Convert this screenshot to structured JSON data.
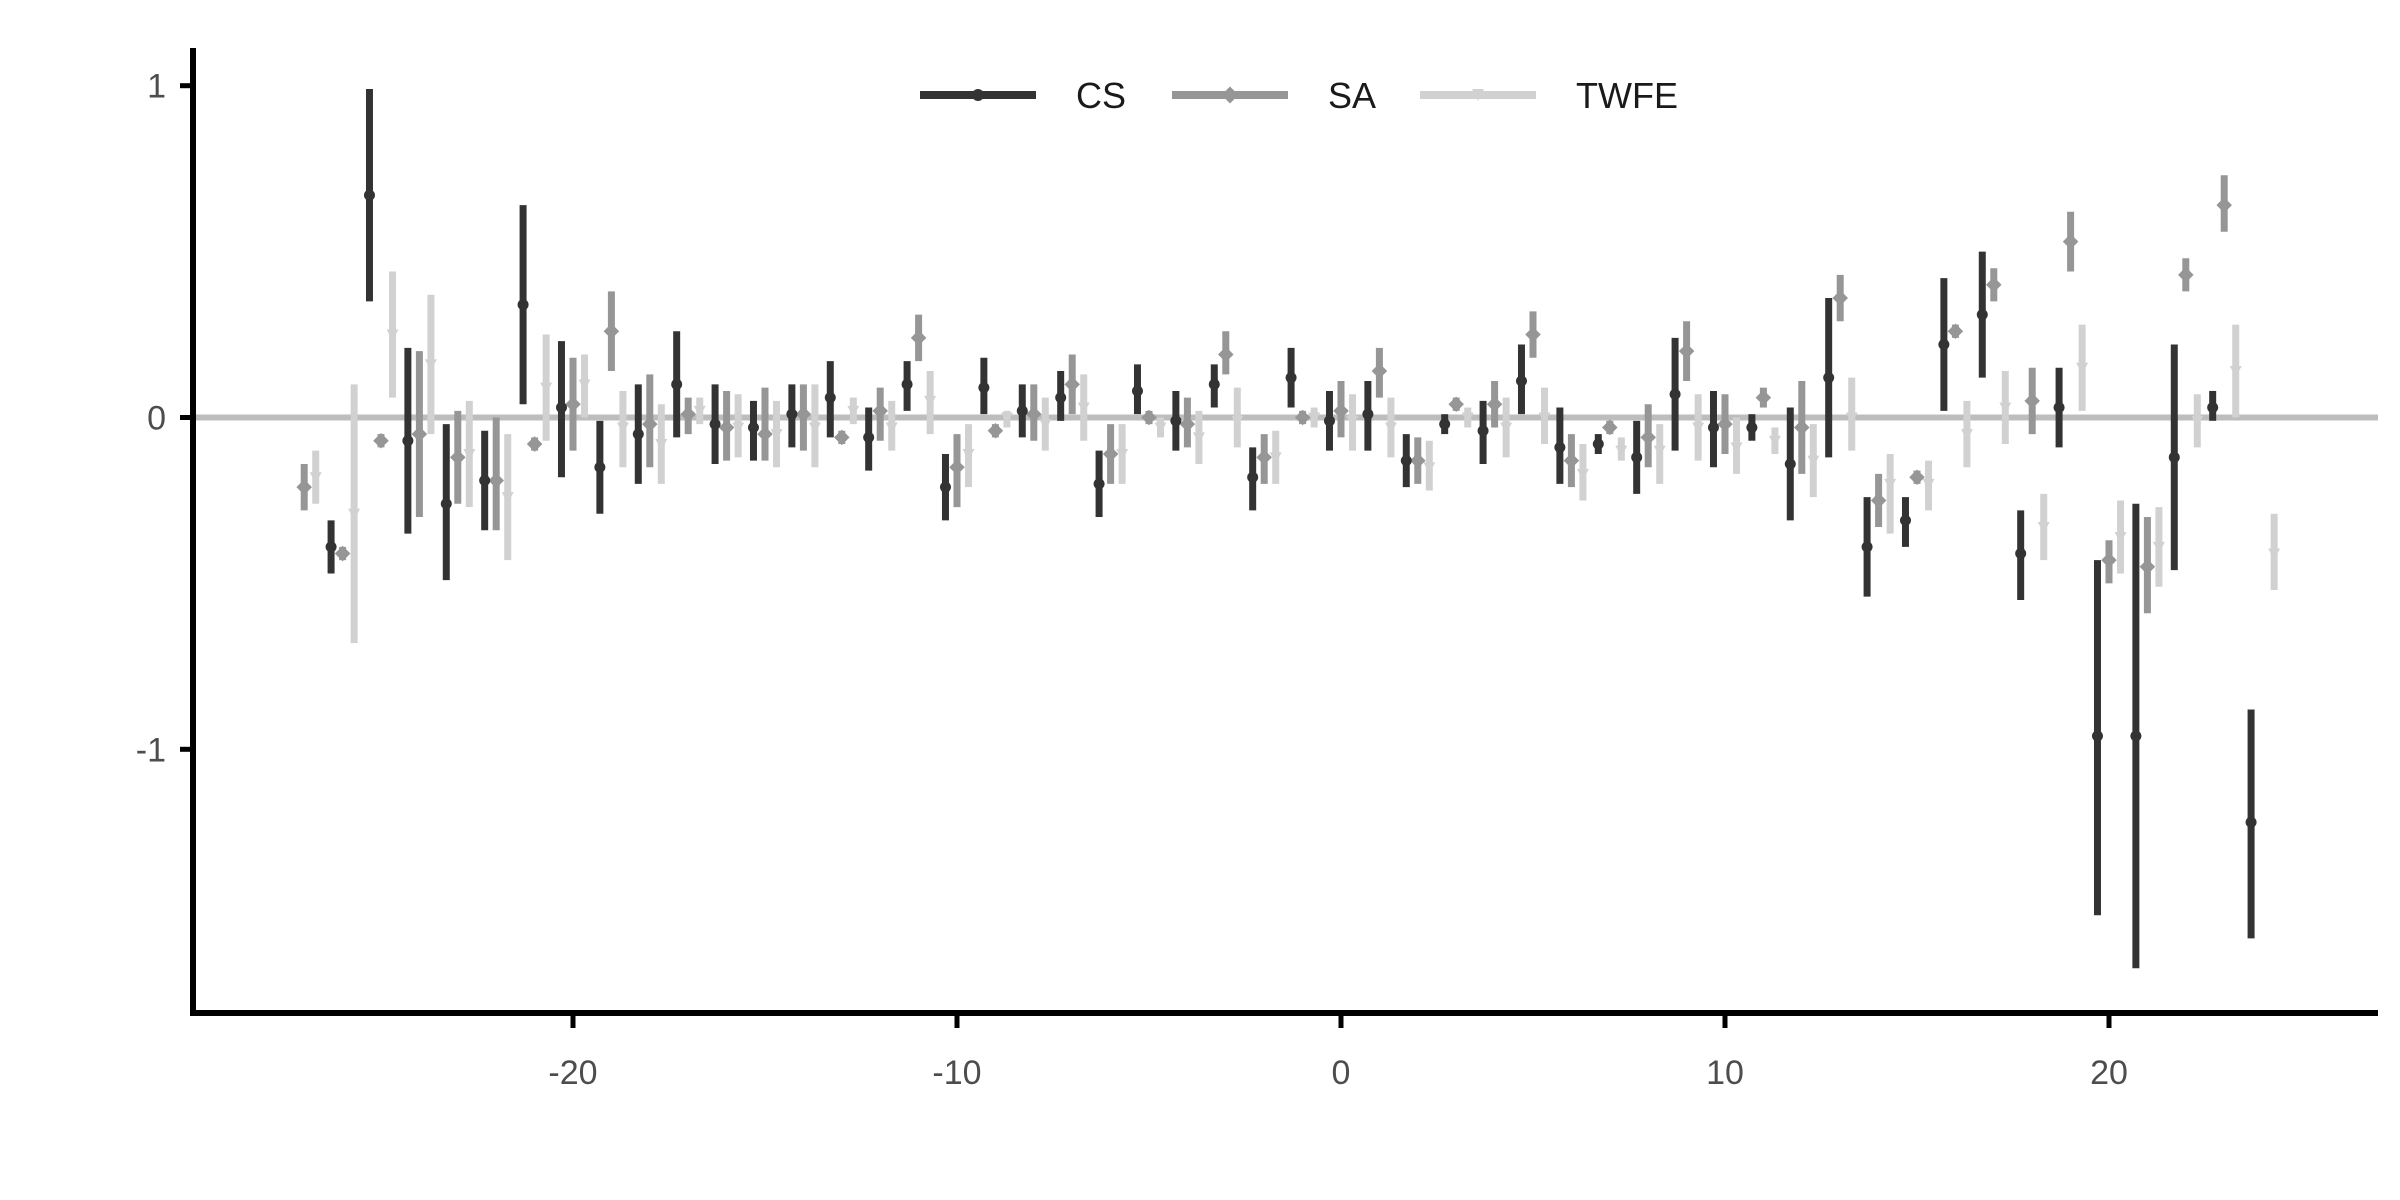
{
  "chart_data": {
    "type": "scatter",
    "subtype": "event-study point estimates with confidence intervals",
    "title": "",
    "xlabel": "",
    "ylabel": "",
    "xlim": [
      -30,
      27
    ],
    "ylim": [
      -1.8,
      1.12
    ],
    "x_ticks": [
      -20,
      -10,
      0,
      10,
      20
    ],
    "x_tick_labels": [
      "-20",
      "-10",
      "0",
      "10",
      "20"
    ],
    "y_ticks": [
      1,
      0,
      -1
    ],
    "y_tick_labels": [
      "1",
      "0",
      "-1"
    ],
    "reference_line_y": 0,
    "grid": false,
    "legend": {
      "placement": "top-center",
      "labels": [
        "CS",
        "SA",
        "TWFE"
      ]
    },
    "colors": {
      "CS": "#333333",
      "SA": "#969696",
      "TWFE": "#d1d1d1",
      "reference_line": "#bdbdbd",
      "axis": "#000000"
    },
    "offsets": {
      "CS": -0.3,
      "SA": 0,
      "TWFE": 0.3
    },
    "series": [
      {
        "name": "CS",
        "points": [
          {
            "x": -26,
            "y": -0.39,
            "lo": -0.47,
            "hi": -0.31
          },
          {
            "x": -25,
            "y": 0.67,
            "lo": 0.35,
            "hi": 0.99
          },
          {
            "x": -24,
            "y": -0.07,
            "lo": -0.35,
            "hi": 0.21
          },
          {
            "x": -23,
            "y": -0.26,
            "lo": -0.49,
            "hi": -0.02
          },
          {
            "x": -22,
            "y": -0.19,
            "lo": -0.34,
            "hi": -0.04
          },
          {
            "x": -21,
            "y": 0.34,
            "lo": 0.04,
            "hi": 0.64
          },
          {
            "x": -20,
            "y": 0.03,
            "lo": -0.18,
            "hi": 0.23
          },
          {
            "x": -19,
            "y": -0.15,
            "lo": -0.29,
            "hi": -0.01
          },
          {
            "x": -18,
            "y": -0.05,
            "lo": -0.2,
            "hi": 0.1
          },
          {
            "x": -17,
            "y": 0.1,
            "lo": -0.06,
            "hi": 0.26
          },
          {
            "x": -16,
            "y": -0.02,
            "lo": -0.14,
            "hi": 0.1
          },
          {
            "x": -15,
            "y": -0.03,
            "lo": -0.13,
            "hi": 0.05
          },
          {
            "x": -14,
            "y": 0.01,
            "lo": -0.09,
            "hi": 0.1
          },
          {
            "x": -13,
            "y": 0.06,
            "lo": -0.06,
            "hi": 0.17
          },
          {
            "x": -12,
            "y": -0.06,
            "lo": -0.16,
            "hi": 0.03
          },
          {
            "x": -11,
            "y": 0.1,
            "lo": 0.02,
            "hi": 0.17
          },
          {
            "x": -10,
            "y": -0.21,
            "lo": -0.31,
            "hi": -0.11
          },
          {
            "x": -9,
            "y": 0.09,
            "lo": 0.01,
            "hi": 0.18
          },
          {
            "x": -8,
            "y": 0.02,
            "lo": -0.06,
            "hi": 0.1
          },
          {
            "x": -7,
            "y": 0.06,
            "lo": -0.01,
            "hi": 0.14
          },
          {
            "x": -6,
            "y": -0.2,
            "lo": -0.3,
            "hi": -0.1
          },
          {
            "x": -5,
            "y": 0.08,
            "lo": 0.01,
            "hi": 0.16
          },
          {
            "x": -4,
            "y": -0.01,
            "lo": -0.1,
            "hi": 0.08
          },
          {
            "x": -3,
            "y": 0.1,
            "lo": 0.03,
            "hi": 0.16
          },
          {
            "x": -2,
            "y": -0.18,
            "lo": -0.28,
            "hi": -0.09
          },
          {
            "x": -1,
            "y": 0.12,
            "lo": 0.03,
            "hi": 0.21
          },
          {
            "x": 0,
            "y": -0.01,
            "lo": -0.1,
            "hi": 0.08
          },
          {
            "x": 1,
            "y": 0.01,
            "lo": -0.1,
            "hi": 0.11
          },
          {
            "x": 2,
            "y": -0.13,
            "lo": -0.21,
            "hi": -0.05
          },
          {
            "x": 3,
            "y": -0.02,
            "lo": -0.05,
            "hi": 0.01
          },
          {
            "x": 4,
            "y": -0.04,
            "lo": -0.14,
            "hi": 0.05
          },
          {
            "x": 5,
            "y": 0.11,
            "lo": 0.01,
            "hi": 0.22
          },
          {
            "x": 6,
            "y": -0.09,
            "lo": -0.2,
            "hi": 0.03
          },
          {
            "x": 7,
            "y": -0.08,
            "lo": -0.11,
            "hi": -0.05
          },
          {
            "x": 8,
            "y": -0.12,
            "lo": -0.23,
            "hi": -0.01
          },
          {
            "x": 9,
            "y": 0.07,
            "lo": -0.1,
            "hi": 0.24
          },
          {
            "x": 10,
            "y": -0.03,
            "lo": -0.15,
            "hi": 0.08
          },
          {
            "x": 11,
            "y": -0.03,
            "lo": -0.07,
            "hi": 0.01
          },
          {
            "x": 12,
            "y": -0.14,
            "lo": -0.31,
            "hi": 0.03
          },
          {
            "x": 13,
            "y": 0.12,
            "lo": -0.12,
            "hi": 0.36
          },
          {
            "x": 14,
            "y": -0.39,
            "lo": -0.54,
            "hi": -0.24
          },
          {
            "x": 15,
            "y": -0.31,
            "lo": -0.39,
            "hi": -0.24
          },
          {
            "x": 16,
            "y": 0.22,
            "lo": 0.02,
            "hi": 0.42
          },
          {
            "x": 17,
            "y": 0.31,
            "lo": 0.12,
            "hi": 0.5
          },
          {
            "x": 18,
            "y": -0.41,
            "lo": -0.55,
            "hi": -0.28
          },
          {
            "x": 19,
            "y": 0.03,
            "lo": -0.09,
            "hi": 0.15
          },
          {
            "x": 20,
            "y": -0.96,
            "lo": -1.5,
            "hi": -0.43
          },
          {
            "x": 21,
            "y": -0.96,
            "lo": -1.66,
            "hi": -0.26
          },
          {
            "x": 22,
            "y": -0.12,
            "lo": -0.46,
            "hi": 0.22
          },
          {
            "x": 23,
            "y": 0.03,
            "lo": -0.01,
            "hi": 0.08
          },
          {
            "x": 24,
            "y": -1.22,
            "lo": -1.57,
            "hi": -0.88
          }
        ]
      },
      {
        "name": "SA",
        "points": [
          {
            "x": -27,
            "y": -0.21,
            "lo": -0.28,
            "hi": -0.14
          },
          {
            "x": -26,
            "y": -0.41,
            "lo": -0.43,
            "hi": -0.39
          },
          {
            "x": -25,
            "y": -0.07,
            "lo": -0.09,
            "hi": -0.05
          },
          {
            "x": -24,
            "y": -0.05,
            "lo": -0.3,
            "hi": 0.2
          },
          {
            "x": -23,
            "y": -0.12,
            "lo": -0.26,
            "hi": 0.02
          },
          {
            "x": -22,
            "y": -0.19,
            "lo": -0.34,
            "hi": 0.0
          },
          {
            "x": -21,
            "y": -0.08,
            "lo": -0.1,
            "hi": -0.06
          },
          {
            "x": -20,
            "y": 0.04,
            "lo": -0.1,
            "hi": 0.18
          },
          {
            "x": -19,
            "y": 0.26,
            "lo": 0.14,
            "hi": 0.38
          },
          {
            "x": -18,
            "y": -0.02,
            "lo": -0.15,
            "hi": 0.13
          },
          {
            "x": -17,
            "y": 0.01,
            "lo": -0.05,
            "hi": 0.06
          },
          {
            "x": -16,
            "y": -0.03,
            "lo": -0.13,
            "hi": 0.08
          },
          {
            "x": -15,
            "y": -0.05,
            "lo": -0.13,
            "hi": 0.09
          },
          {
            "x": -14,
            "y": 0.01,
            "lo": -0.1,
            "hi": 0.1
          },
          {
            "x": -13,
            "y": -0.06,
            "lo": -0.08,
            "hi": -0.04
          },
          {
            "x": -12,
            "y": 0.02,
            "lo": -0.07,
            "hi": 0.09
          },
          {
            "x": -11,
            "y": 0.24,
            "lo": 0.17,
            "hi": 0.31
          },
          {
            "x": -10,
            "y": -0.15,
            "lo": -0.27,
            "hi": -0.05
          },
          {
            "x": -9,
            "y": -0.04,
            "lo": -0.06,
            "hi": -0.02
          },
          {
            "x": -8,
            "y": 0.01,
            "lo": -0.07,
            "hi": 0.1
          },
          {
            "x": -7,
            "y": 0.1,
            "lo": 0.01,
            "hi": 0.19
          },
          {
            "x": -6,
            "y": -0.11,
            "lo": -0.2,
            "hi": -0.02
          },
          {
            "x": -5,
            "y": 0.0,
            "lo": -0.02,
            "hi": 0.02
          },
          {
            "x": -4,
            "y": -0.02,
            "lo": -0.09,
            "hi": 0.06
          },
          {
            "x": -3,
            "y": 0.19,
            "lo": 0.13,
            "hi": 0.26
          },
          {
            "x": -2,
            "y": -0.12,
            "lo": -0.2,
            "hi": -0.05
          },
          {
            "x": -1,
            "y": 0.0,
            "lo": -0.02,
            "hi": 0.02
          },
          {
            "x": 0,
            "y": 0.02,
            "lo": -0.06,
            "hi": 0.11
          },
          {
            "x": 1,
            "y": 0.14,
            "lo": 0.06,
            "hi": 0.21
          },
          {
            "x": 2,
            "y": -0.13,
            "lo": -0.2,
            "hi": -0.06
          },
          {
            "x": 3,
            "y": 0.04,
            "lo": 0.02,
            "hi": 0.06
          },
          {
            "x": 4,
            "y": 0.04,
            "lo": -0.03,
            "hi": 0.11
          },
          {
            "x": 5,
            "y": 0.25,
            "lo": 0.18,
            "hi": 0.32
          },
          {
            "x": 6,
            "y": -0.13,
            "lo": -0.21,
            "hi": -0.05
          },
          {
            "x": 7,
            "y": -0.03,
            "lo": -0.05,
            "hi": -0.01
          },
          {
            "x": 8,
            "y": -0.06,
            "lo": -0.15,
            "hi": 0.04
          },
          {
            "x": 9,
            "y": 0.2,
            "lo": 0.11,
            "hi": 0.29
          },
          {
            "x": 10,
            "y": -0.02,
            "lo": -0.11,
            "hi": 0.07
          },
          {
            "x": 11,
            "y": 0.06,
            "lo": 0.03,
            "hi": 0.09
          },
          {
            "x": 12,
            "y": -0.03,
            "lo": -0.17,
            "hi": 0.11
          },
          {
            "x": 13,
            "y": 0.36,
            "lo": 0.29,
            "hi": 0.43
          },
          {
            "x": 14,
            "y": -0.25,
            "lo": -0.33,
            "hi": -0.17
          },
          {
            "x": 15,
            "y": -0.18,
            "lo": -0.2,
            "hi": -0.16
          },
          {
            "x": 16,
            "y": 0.26,
            "lo": 0.24,
            "hi": 0.28
          },
          {
            "x": 17,
            "y": 0.4,
            "lo": 0.35,
            "hi": 0.45
          },
          {
            "x": 18,
            "y": 0.05,
            "lo": -0.05,
            "hi": 0.15
          },
          {
            "x": 19,
            "y": 0.53,
            "lo": 0.44,
            "hi": 0.62
          },
          {
            "x": 20,
            "y": -0.43,
            "lo": -0.5,
            "hi": -0.37
          },
          {
            "x": 21,
            "y": -0.45,
            "lo": -0.59,
            "hi": -0.3
          },
          {
            "x": 22,
            "y": 0.43,
            "lo": 0.38,
            "hi": 0.48
          },
          {
            "x": 23,
            "y": 0.64,
            "lo": 0.56,
            "hi": 0.73
          }
        ]
      },
      {
        "name": "TWFE",
        "points": [
          {
            "x": -27,
            "y": -0.18,
            "lo": -0.26,
            "hi": -0.1
          },
          {
            "x": -26,
            "y": -0.29,
            "lo": -0.68,
            "hi": 0.1
          },
          {
            "x": -25,
            "y": 0.25,
            "lo": 0.06,
            "hi": 0.44
          },
          {
            "x": -24,
            "y": 0.16,
            "lo": -0.05,
            "hi": 0.37
          },
          {
            "x": -23,
            "y": -0.11,
            "lo": -0.27,
            "hi": 0.05
          },
          {
            "x": -22,
            "y": -0.24,
            "lo": -0.43,
            "hi": -0.05
          },
          {
            "x": -21,
            "y": 0.09,
            "lo": -0.07,
            "hi": 0.25
          },
          {
            "x": -20,
            "y": 0.1,
            "lo": 0.0,
            "hi": 0.19
          },
          {
            "x": -19,
            "y": -0.03,
            "lo": -0.15,
            "hi": 0.08
          },
          {
            "x": -18,
            "y": -0.08,
            "lo": -0.2,
            "hi": 0.04
          },
          {
            "x": -17,
            "y": 0.02,
            "lo": -0.02,
            "hi": 0.06
          },
          {
            "x": -16,
            "y": -0.03,
            "lo": -0.12,
            "hi": 0.07
          },
          {
            "x": -15,
            "y": -0.05,
            "lo": -0.15,
            "hi": 0.05
          },
          {
            "x": -14,
            "y": -0.03,
            "lo": -0.15,
            "hi": 0.1
          },
          {
            "x": -13,
            "y": 0.02,
            "lo": -0.02,
            "hi": 0.06
          },
          {
            "x": -12,
            "y": -0.03,
            "lo": -0.1,
            "hi": 0.05
          },
          {
            "x": -11,
            "y": 0.05,
            "lo": -0.05,
            "hi": 0.14
          },
          {
            "x": -10,
            "y": -0.11,
            "lo": -0.21,
            "hi": -0.02
          },
          {
            "x": -9,
            "y": 0.0,
            "lo": -0.03,
            "hi": 0.02
          },
          {
            "x": -8,
            "y": -0.02,
            "lo": -0.1,
            "hi": 0.06
          },
          {
            "x": -7,
            "y": 0.03,
            "lo": -0.07,
            "hi": 0.13
          },
          {
            "x": -6,
            "y": -0.11,
            "lo": -0.2,
            "hi": -0.02
          },
          {
            "x": -5,
            "y": -0.03,
            "lo": -0.06,
            "hi": 0.0
          },
          {
            "x": -4,
            "y": -0.06,
            "lo": -0.14,
            "hi": 0.02
          },
          {
            "x": -3,
            "y": -0.01,
            "lo": -0.09,
            "hi": 0.09
          },
          {
            "x": -2,
            "y": -0.12,
            "lo": -0.2,
            "hi": -0.04
          },
          {
            "x": -1,
            "y": 0.0,
            "lo": -0.03,
            "hi": 0.03
          },
          {
            "x": 0,
            "y": -0.01,
            "lo": -0.1,
            "hi": 0.07
          },
          {
            "x": 1,
            "y": -0.03,
            "lo": -0.12,
            "hi": 0.06
          },
          {
            "x": 2,
            "y": -0.15,
            "lo": -0.22,
            "hi": -0.07
          },
          {
            "x": 3,
            "y": 0.0,
            "lo": -0.03,
            "hi": 0.03
          },
          {
            "x": 4,
            "y": -0.03,
            "lo": -0.12,
            "hi": 0.06
          },
          {
            "x": 5,
            "y": 0.0,
            "lo": -0.08,
            "hi": 0.09
          },
          {
            "x": 6,
            "y": -0.17,
            "lo": -0.25,
            "hi": -0.08
          },
          {
            "x": 7,
            "y": -0.1,
            "lo": -0.13,
            "hi": -0.06
          },
          {
            "x": 8,
            "y": -0.1,
            "lo": -0.2,
            "hi": -0.02
          },
          {
            "x": 9,
            "y": -0.03,
            "lo": -0.13,
            "hi": 0.07
          },
          {
            "x": 10,
            "y": -0.09,
            "lo": -0.17,
            "hi": 0.0
          },
          {
            "x": 11,
            "y": -0.07,
            "lo": -0.11,
            "hi": -0.03
          },
          {
            "x": 12,
            "y": -0.13,
            "lo": -0.24,
            "hi": -0.02
          },
          {
            "x": 13,
            "y": 0.0,
            "lo": -0.1,
            "hi": 0.12
          },
          {
            "x": 14,
            "y": -0.2,
            "lo": -0.35,
            "hi": -0.11
          },
          {
            "x": 15,
            "y": -0.2,
            "lo": -0.28,
            "hi": -0.13
          },
          {
            "x": 16,
            "y": -0.05,
            "lo": -0.15,
            "hi": 0.05
          },
          {
            "x": 17,
            "y": 0.03,
            "lo": -0.08,
            "hi": 0.14
          },
          {
            "x": 18,
            "y": -0.33,
            "lo": -0.43,
            "hi": -0.23
          },
          {
            "x": 19,
            "y": 0.15,
            "lo": 0.02,
            "hi": 0.28
          },
          {
            "x": 20,
            "y": -0.36,
            "lo": -0.47,
            "hi": -0.25
          },
          {
            "x": 21,
            "y": -0.39,
            "lo": -0.51,
            "hi": -0.27
          },
          {
            "x": 22,
            "y": -0.01,
            "lo": -0.09,
            "hi": 0.07
          },
          {
            "x": 23,
            "y": 0.14,
            "lo": 0.0,
            "hi": 0.28
          },
          {
            "x": 24,
            "y": -0.41,
            "lo": -0.52,
            "hi": -0.29
          }
        ]
      }
    ]
  }
}
